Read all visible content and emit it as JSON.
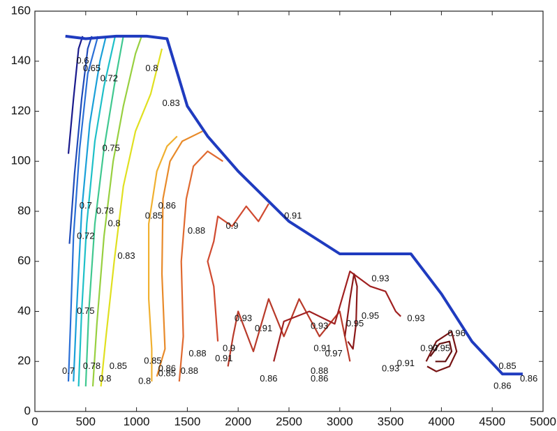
{
  "chart_data": {
    "type": "contour",
    "title": "",
    "xlabel": "",
    "ylabel": "",
    "xlim": [
      0,
      5000
    ],
    "ylim": [
      0,
      160
    ],
    "x_ticks": [
      0,
      500,
      1000,
      1500,
      2000,
      2500,
      3000,
      3500,
      4000,
      4500,
      5000
    ],
    "y_ticks": [
      0,
      20,
      40,
      60,
      80,
      100,
      120,
      140,
      160
    ],
    "grid": false,
    "legend": "none",
    "boundary": {
      "color": "#1f3bbf",
      "points": [
        [
          300,
          150
        ],
        [
          500,
          149
        ],
        [
          800,
          150
        ],
        [
          1100,
          150
        ],
        [
          1300,
          149
        ],
        [
          1500,
          122
        ],
        [
          1700,
          110
        ],
        [
          2000,
          96
        ],
        [
          2500,
          76
        ],
        [
          3000,
          63
        ],
        [
          3500,
          63
        ],
        [
          3700,
          63
        ],
        [
          4000,
          47
        ],
        [
          4300,
          28
        ],
        [
          4600,
          15
        ],
        [
          4800,
          15
        ]
      ]
    },
    "contours": [
      {
        "level": "0.6",
        "color": "#1a1a8c",
        "points": [
          [
            330,
            103
          ],
          [
            380,
            125
          ],
          [
            430,
            145
          ],
          [
            470,
            150
          ]
        ]
      },
      {
        "level": "0.65",
        "color": "#1f4ab8",
        "points": [
          [
            340,
            67
          ],
          [
            390,
            95
          ],
          [
            460,
            125
          ],
          [
            520,
            145
          ],
          [
            560,
            150
          ]
        ]
      },
      {
        "level": "0.7",
        "color": "#2a6fd6",
        "points": [
          [
            330,
            12
          ],
          [
            350,
            35
          ],
          [
            380,
            70
          ],
          [
            440,
            105
          ],
          [
            520,
            135
          ],
          [
            620,
            150
          ]
        ]
      },
      {
        "level": "0.72",
        "color": "#1aa0d8",
        "points": [
          [
            380,
            12
          ],
          [
            410,
            40
          ],
          [
            460,
            80
          ],
          [
            540,
            115
          ],
          [
            640,
            140
          ],
          [
            700,
            150
          ]
        ]
      },
      {
        "level": "0.75",
        "color": "#1ec0c8",
        "points": [
          [
            430,
            10
          ],
          [
            460,
            40
          ],
          [
            510,
            75
          ],
          [
            590,
            108
          ],
          [
            680,
            130
          ],
          [
            790,
            150
          ]
        ]
      },
      {
        "level": "0.78",
        "color": "#40c890",
        "points": [
          [
            500,
            10
          ],
          [
            530,
            40
          ],
          [
            590,
            75
          ],
          [
            680,
            105
          ],
          [
            780,
            130
          ],
          [
            870,
            150
          ]
        ]
      },
      {
        "level": "0.8",
        "color": "#98d040",
        "points": [
          [
            570,
            10
          ],
          [
            610,
            35
          ],
          [
            680,
            70
          ],
          [
            770,
            100
          ],
          [
            870,
            122
          ],
          [
            990,
            143
          ],
          [
            1050,
            150
          ]
        ]
      },
      {
        "level": "0.83",
        "color": "#e0e020",
        "points": [
          [
            650,
            10
          ],
          [
            700,
            30
          ],
          [
            780,
            60
          ],
          [
            870,
            90
          ],
          [
            990,
            112
          ],
          [
            1140,
            127
          ],
          [
            1250,
            145
          ]
        ]
      },
      {
        "level": "0.85",
        "color": "#f0b030",
        "points": [
          [
            1150,
            12
          ],
          [
            1150,
            25
          ],
          [
            1120,
            45
          ],
          [
            1120,
            75
          ],
          [
            1200,
            96
          ],
          [
            1300,
            106
          ],
          [
            1400,
            110
          ]
        ]
      },
      {
        "level": "0.86",
        "color": "#e88a2a",
        "points": [
          [
            1200,
            14
          ],
          [
            1280,
            25
          ],
          [
            1250,
            55
          ],
          [
            1260,
            85
          ],
          [
            1330,
            100
          ],
          [
            1450,
            108
          ],
          [
            1650,
            112
          ]
        ]
      },
      {
        "level": "0.88",
        "color": "#e06a30",
        "points": [
          [
            1420,
            12
          ],
          [
            1460,
            30
          ],
          [
            1440,
            60
          ],
          [
            1490,
            85
          ],
          [
            1560,
            98
          ],
          [
            1700,
            104
          ],
          [
            1850,
            100
          ]
        ]
      },
      {
        "level": "0.9",
        "color": "#d04a30",
        "points": [
          [
            1800,
            28
          ],
          [
            1760,
            50
          ],
          [
            1700,
            60
          ],
          [
            1760,
            68
          ],
          [
            1800,
            78
          ],
          [
            1940,
            74
          ],
          [
            2080,
            82
          ],
          [
            2200,
            76
          ],
          [
            2300,
            83
          ]
        ]
      },
      {
        "level": "0.91",
        "color": "#b83a2a",
        "points": [
          [
            1900,
            18
          ],
          [
            1950,
            30
          ],
          [
            2000,
            40
          ],
          [
            2150,
            24
          ],
          [
            2300,
            45
          ],
          [
            2450,
            30
          ],
          [
            2600,
            45
          ],
          [
            2800,
            30
          ],
          [
            3000,
            40
          ],
          [
            3100,
            20
          ]
        ]
      },
      {
        "level": "0.93",
        "color": "#a02020",
        "points": [
          [
            2350,
            20
          ],
          [
            2450,
            36
          ],
          [
            2700,
            40
          ],
          [
            2950,
            35
          ],
          [
            3100,
            56
          ],
          [
            3300,
            50
          ],
          [
            3450,
            48
          ],
          [
            3550,
            40
          ],
          [
            3600,
            38
          ]
        ]
      },
      {
        "level": "0.95",
        "color": "#8c1a1a",
        "points": [
          [
            3050,
            30
          ],
          [
            3100,
            45
          ],
          [
            3140,
            55
          ],
          [
            3170,
            50
          ],
          [
            3160,
            35
          ],
          [
            3130,
            25
          ],
          [
            3080,
            28
          ]
        ]
      },
      {
        "level": "0.96",
        "color": "#781414",
        "points": [
          [
            3850,
            20
          ],
          [
            3950,
            28
          ],
          [
            4100,
            32
          ],
          [
            4150,
            24
          ],
          [
            4080,
            18
          ],
          [
            3950,
            16
          ],
          [
            3860,
            18
          ]
        ]
      },
      {
        "level": "0.97",
        "color": "#641010",
        "points": [
          [
            3890,
            22
          ],
          [
            3980,
            27
          ],
          [
            4080,
            28
          ],
          [
            4100,
            24
          ],
          [
            4040,
            20
          ],
          [
            3940,
            20
          ]
        ]
      }
    ],
    "labels": [
      {
        "text": "0.6",
        "x": 470,
        "y": 140
      },
      {
        "text": "0.65",
        "x": 560,
        "y": 137
      },
      {
        "text": "0.72",
        "x": 730,
        "y": 133
      },
      {
        "text": "0.8",
        "x": 1150,
        "y": 137
      },
      {
        "text": "0.83",
        "x": 1340,
        "y": 123
      },
      {
        "text": "0.75",
        "x": 750,
        "y": 105
      },
      {
        "text": "0.7",
        "x": 500,
        "y": 82
      },
      {
        "text": "0.78",
        "x": 690,
        "y": 80
      },
      {
        "text": "0.8",
        "x": 780,
        "y": 75
      },
      {
        "text": "0.72",
        "x": 500,
        "y": 70
      },
      {
        "text": "0.83",
        "x": 900,
        "y": 62
      },
      {
        "text": "0.85",
        "x": 1170,
        "y": 78
      },
      {
        "text": "0.86",
        "x": 1300,
        "y": 82
      },
      {
        "text": "0.88",
        "x": 1590,
        "y": 72
      },
      {
        "text": "0.9",
        "x": 1940,
        "y": 74
      },
      {
        "text": "0.91",
        "x": 2540,
        "y": 78
      },
      {
        "text": "0.75",
        "x": 500,
        "y": 40
      },
      {
        "text": "0.93",
        "x": 2050,
        "y": 37
      },
      {
        "text": "0.91",
        "x": 2250,
        "y": 33
      },
      {
        "text": "0.93",
        "x": 2800,
        "y": 34
      },
      {
        "text": "0.93",
        "x": 3400,
        "y": 53
      },
      {
        "text": "0.95",
        "x": 3150,
        "y": 35
      },
      {
        "text": "0.95",
        "x": 3300,
        "y": 38
      },
      {
        "text": "0.93",
        "x": 3750,
        "y": 37
      },
      {
        "text": "0.96",
        "x": 4150,
        "y": 31
      },
      {
        "text": "0.88",
        "x": 1600,
        "y": 23
      },
      {
        "text": "0.9",
        "x": 1910,
        "y": 25
      },
      {
        "text": "0.91",
        "x": 1860,
        "y": 21
      },
      {
        "text": "0.97",
        "x": 2940,
        "y": 23
      },
      {
        "text": "0.91",
        "x": 2830,
        "y": 25
      },
      {
        "text": "0.95",
        "x": 4000,
        "y": 25
      },
      {
        "text": "0.97",
        "x": 3880,
        "y": 25
      },
      {
        "text": "0.91",
        "x": 3650,
        "y": 19
      },
      {
        "text": "0.93",
        "x": 3500,
        "y": 17
      },
      {
        "text": "0.7",
        "x": 330,
        "y": 16
      },
      {
        "text": "0.78",
        "x": 560,
        "y": 18
      },
      {
        "text": "0.8",
        "x": 690,
        "y": 13
      },
      {
        "text": "0.85",
        "x": 820,
        "y": 18
      },
      {
        "text": "0.8",
        "x": 1080,
        "y": 12
      },
      {
        "text": "0.85",
        "x": 1160,
        "y": 20
      },
      {
        "text": "0.86",
        "x": 1300,
        "y": 17
      },
      {
        "text": "0.85",
        "x": 1300,
        "y": 15
      },
      {
        "text": "0.88",
        "x": 1520,
        "y": 16
      },
      {
        "text": "0.86",
        "x": 2300,
        "y": 13
      },
      {
        "text": "0.88",
        "x": 2800,
        "y": 16
      },
      {
        "text": "0.86",
        "x": 2800,
        "y": 13
      },
      {
        "text": "0.85",
        "x": 4650,
        "y": 18
      },
      {
        "text": "0.86",
        "x": 4600,
        "y": 10
      },
      {
        "text": "0.86",
        "x": 4860,
        "y": 13
      }
    ]
  }
}
